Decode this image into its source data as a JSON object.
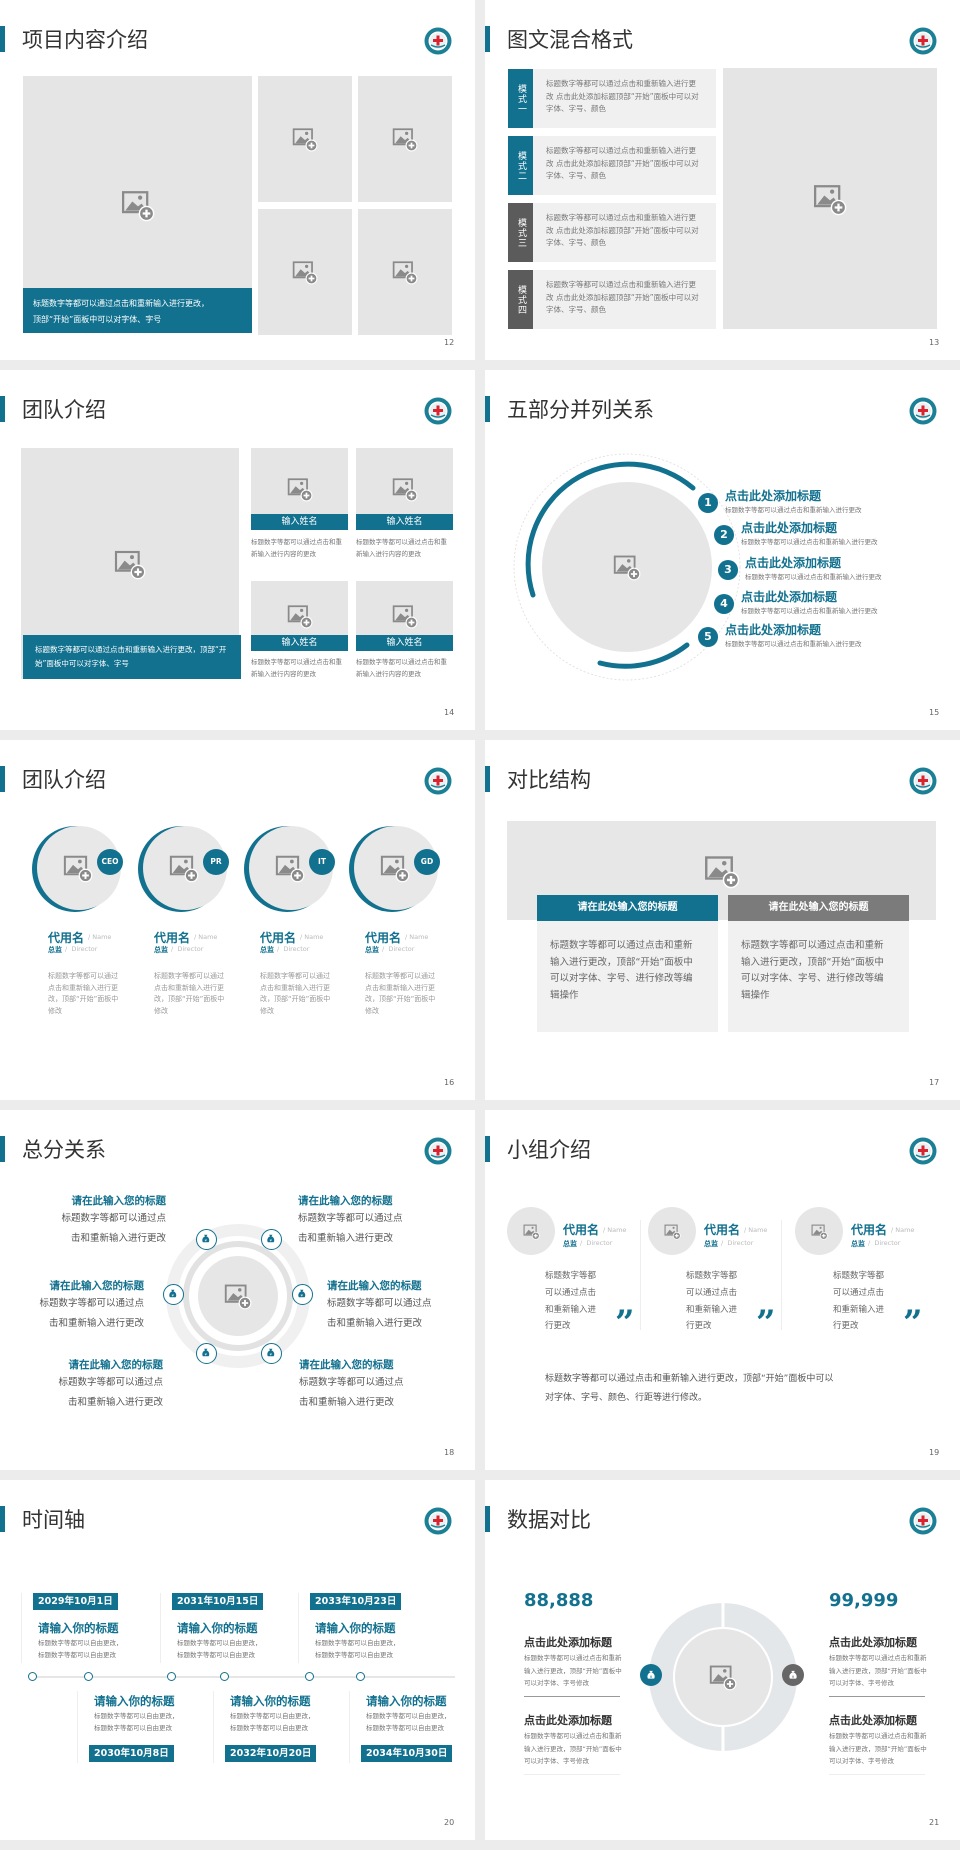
{
  "colors": {
    "accent": "#12718f",
    "dark": "#5b5b5b",
    "placeholder": "#e5e5e5",
    "text": "#777777"
  },
  "logo_icon": "university-seal-logo",
  "placeholder_icon": "image-add-icon",
  "slides": [
    {
      "title": "项目内容介绍",
      "page": "12",
      "caption": [
        "标题数字等都可以通过点击和重新输入进行更改，",
        "顶部“开始”面板中可以对字体、字号"
      ]
    },
    {
      "title": "图文混合格式",
      "page": "13",
      "items": [
        {
          "tab": "模式一",
          "text": "标题数字等都可以通过点击和重新输入进行更改 点击此处添加标题顶部“开始”面板中可以对字体、字号、颜色"
        },
        {
          "tab": "模式二",
          "text": "标题数字等都可以通过点击和重新输入进行更改 点击此处添加标题顶部“开始”面板中可以对字体、字号、颜色"
        },
        {
          "tab": "模式三",
          "text": "标题数字等都可以通过点击和重新输入进行更改 点击此处添加标题顶部“开始”面板中可以对字体、字号、颜色"
        },
        {
          "tab": "模式四",
          "text": "标题数字等都可以通过点击和重新输入进行更改 点击此处添加标题顶部“开始”面板中可以对字体、字号、颜色"
        }
      ]
    },
    {
      "title": "团队介绍",
      "page": "14",
      "caption": "标题数字等都可以通过点击和重新输入进行更改，顶部“开始”面板中可以对字体、字号",
      "members": [
        {
          "name": "输入姓名",
          "text": "标题数字等都可以通过点击和重新输入进行内容的更改"
        },
        {
          "name": "输入姓名",
          "text": "标题数字等都可以通过点击和重新输入进行内容的更改"
        },
        {
          "name": "输入姓名",
          "text": "标题数字等都可以通过点击和重新输入进行内容的更改"
        },
        {
          "name": "输入姓名",
          "text": "标题数字等都可以通过点击和重新输入进行内容的更改"
        }
      ]
    },
    {
      "title": "五部分并列关系",
      "page": "15",
      "items": [
        {
          "num": "1",
          "heading": "点击此处添加标题",
          "text": "标题数字等都可以通过点击和重新输入进行更改"
        },
        {
          "num": "2",
          "heading": "点击此处添加标题",
          "text": "标题数字等都可以通过点击和重新输入进行更改"
        },
        {
          "num": "3",
          "heading": "点击此处添加标题",
          "text": "标题数字等都可以通过点击和重新输入进行更改"
        },
        {
          "num": "4",
          "heading": "点击此处添加标题",
          "text": "标题数字等都可以通过点击和重新输入进行更改"
        },
        {
          "num": "5",
          "heading": "点击此处添加标题",
          "text": "标题数字等都可以通过点击和重新输入进行更改"
        }
      ]
    },
    {
      "title": "团队介绍",
      "page": "16",
      "members": [
        {
          "badge": "CEO",
          "name": "代用名",
          "name_en": "/ Name",
          "role": "总监",
          "role_en": "/  Director",
          "text": "标题数字等都可以通过点击和重新输入进行更改，顶部“开始”面板中修改"
        },
        {
          "badge": "PR",
          "name": "代用名",
          "name_en": "/ Name",
          "role": "总监",
          "role_en": "/  Director",
          "text": "标题数字等都可以通过点击和重新输入进行更改，顶部“开始”面板中修改"
        },
        {
          "badge": "IT",
          "name": "代用名",
          "name_en": "/ Name",
          "role": "总监",
          "role_en": "/  Director",
          "text": "标题数字等都可以通过点击和重新输入进行更改，顶部“开始”面板中修改"
        },
        {
          "badge": "GD",
          "name": "代用名",
          "name_en": "/ Name",
          "role": "总监",
          "role_en": "/  Director",
          "text": "标题数字等都可以通过点击和重新输入进行更改，顶部“开始”面板中修改"
        }
      ]
    },
    {
      "title": "对比结构",
      "page": "17",
      "boxes": [
        {
          "heading": "请在此处输入您的标题",
          "text": "标题数字等都可以通过点击和重新输入进行更改，顶部“开始”面板中可以对字体、字号、进行修改等编辑操作"
        },
        {
          "heading": "请在此处输入您的标题",
          "text": "标题数字等都可以通过点击和重新输入进行更改，顶部“开始”面板中可以对字体、字号、进行修改等编辑操作"
        }
      ]
    },
    {
      "title": "总分关系",
      "page": "18",
      "icon": "money-bag-icon",
      "items": [
        {
          "heading": "请在此输入您的标题",
          "lines": [
            "标题数字等都可以通过点",
            "击和重新输入进行更改"
          ]
        },
        {
          "heading": "请在此输入您的标题",
          "lines": [
            "标题数字等都可以通过点",
            "击和重新输入进行更改"
          ]
        },
        {
          "heading": "请在此输入您的标题",
          "lines": [
            "标题数字等都可以通过点",
            "击和重新输入进行更改"
          ]
        },
        {
          "heading": "请在此输入您的标题",
          "lines": [
            "标题数字等都可以通过点",
            "击和重新输入进行更改"
          ]
        },
        {
          "heading": "请在此输入您的标题",
          "lines": [
            "标题数字等都可以通过点",
            "击和重新输入进行更改"
          ]
        },
        {
          "heading": "请在此输入您的标题",
          "lines": [
            "标题数字等都可以通过点",
            "击和重新输入进行更改"
          ]
        }
      ]
    },
    {
      "title": "小组介绍",
      "page": "19",
      "members": [
        {
          "name": "代用名",
          "name_en": "/ Name",
          "role": "总监",
          "role_en": "/  Director",
          "lines": [
            "标题数字等都",
            "可以通过点击",
            "和重新输入进",
            "行更改"
          ]
        },
        {
          "name": "代用名",
          "name_en": "/ Name",
          "role": "总监",
          "role_en": "/  Director",
          "lines": [
            "标题数字等都",
            "可以通过点击",
            "和重新输入进",
            "行更改"
          ]
        },
        {
          "name": "代用名",
          "name_en": "/ Name",
          "role": "总监",
          "role_en": "/  Director",
          "lines": [
            "标题数字等都",
            "可以通过点击",
            "和重新输入进",
            "行更改"
          ]
        }
      ],
      "quote": "”",
      "summary": [
        "标题数字等都可以通过点击和重新输入进行更改，顶部“开始”面板中可以",
        "对字体、字号、颜色、行距等进行修改。"
      ]
    },
    {
      "title": "时间轴",
      "page": "20",
      "events": [
        {
          "date": "2029年10月1日",
          "heading": "请输入你的标题",
          "text": "标题数字等都可以自由更改，标题数字等都可以自由更改"
        },
        {
          "date": "2030年10月8日",
          "heading": "请输入你的标题",
          "text": "标题数字等都可以自由更改，标题数字等都可以自由更改"
        },
        {
          "date": "2031年10月15日",
          "heading": "请输入你的标题",
          "text": "标题数字等都可以自由更改，标题数字等都可以自由更改"
        },
        {
          "date": "2032年10月20日",
          "heading": "请输入你的标题",
          "text": "标题数字等都可以自由更改，标题数字等都可以自由更改"
        },
        {
          "date": "2033年10月23日",
          "heading": "请输入你的标题",
          "text": "标题数字等都可以自由更改，标题数字等都可以自由更改"
        },
        {
          "date": "2034年10月30日",
          "heading": "请输入你的标题",
          "text": "标题数字等都可以自由更改，标题数字等都可以自由更改"
        }
      ]
    },
    {
      "title": "数据对比",
      "page": "21",
      "left": {
        "value": "88,888",
        "icon": "money-hand-icon",
        "blocks": [
          {
            "heading": "点击此处添加标题",
            "text": "标题数字等都可以通过点击和重新输入进行更改，顶部“开始”面板中可以对字体、字号修改"
          },
          {
            "heading": "点击此处添加标题",
            "text": "标题数字等都可以通过点击和重新输入进行更改，顶部“开始”面板中可以对字体、字号修改"
          }
        ]
      },
      "right": {
        "value": "99,999",
        "icon": "money-bag-icon",
        "blocks": [
          {
            "heading": "点击此处添加标题",
            "text": "标题数字等都可以通过点击和重新输入进行更改，顶部“开始”面板中可以对字体、字号修改"
          },
          {
            "heading": "点击此处添加标题",
            "text": "标题数字等都可以通过点击和重新输入进行更改，顶部“开始”面板中可以对字体、字号修改"
          }
        ]
      }
    }
  ]
}
